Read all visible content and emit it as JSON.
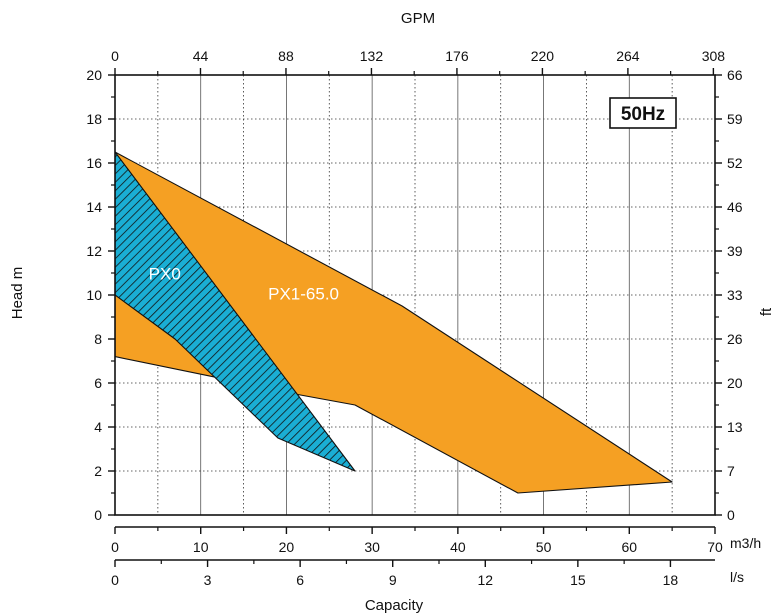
{
  "chart_data": {
    "type": "area",
    "frequency_badge": "50Hz",
    "axes": {
      "left": {
        "label": "Head m",
        "range": [
          0,
          20
        ],
        "ticks": [
          "0",
          "2",
          "4",
          "6",
          "8",
          "10",
          "12",
          "14",
          "16",
          "18",
          "20"
        ]
      },
      "right": {
        "label": "ft",
        "ticks": [
          "0",
          "7",
          "13",
          "20",
          "26",
          "33",
          "39",
          "46",
          "52",
          "59",
          "66"
        ]
      },
      "top": {
        "label": "GPM",
        "ticks": [
          "0",
          "44",
          "88",
          "132",
          "176",
          "220",
          "264",
          "308"
        ]
      },
      "bottom_m3h": {
        "label": "m3/h",
        "range": [
          0,
          70
        ],
        "ticks": [
          "0",
          "10",
          "20",
          "30",
          "40",
          "50",
          "60",
          "70"
        ]
      },
      "bottom_ls": {
        "label": "l/s",
        "ticks": [
          "0",
          "3",
          "6",
          "9",
          "12",
          "15",
          "18"
        ]
      },
      "xlabel": "Capacity"
    },
    "grid": true,
    "series": [
      {
        "name": "PX1-65.0",
        "fill": "#f5a023",
        "hatched": false,
        "points_m3h_m": [
          [
            0,
            16.5
          ],
          [
            33.5,
            9.5
          ],
          [
            65,
            1.5
          ],
          [
            47,
            1
          ],
          [
            28,
            5
          ],
          [
            21,
            5.5
          ],
          [
            12.5,
            6.2
          ],
          [
            0,
            7.2
          ]
        ]
      },
      {
        "name": "PX0",
        "fill": "#1aaed4",
        "hatched": true,
        "points_m3h_m": [
          [
            0,
            16.5
          ],
          [
            28,
            2
          ],
          [
            19,
            3.5
          ],
          [
            7,
            8
          ],
          [
            0,
            10
          ]
        ]
      }
    ]
  }
}
